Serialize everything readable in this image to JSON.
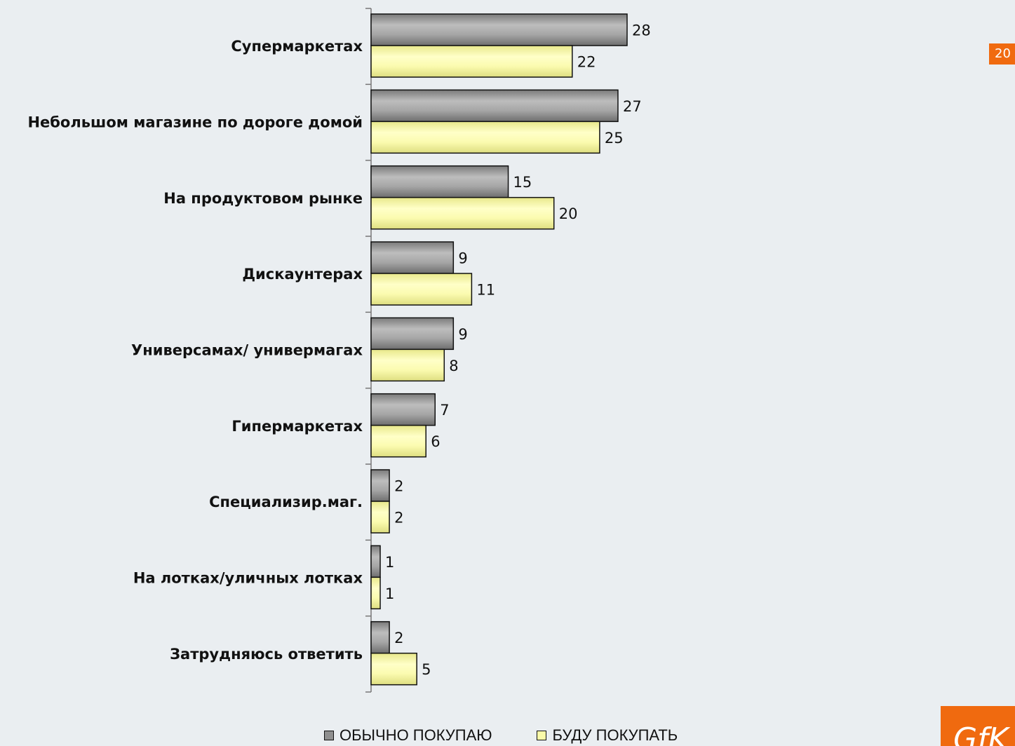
{
  "page_number": "20",
  "logo_text": "GfK",
  "colors": {
    "series_1": "#8f8f8f",
    "series_2": "#fafaa8",
    "background": "#eaeef1",
    "accent": "#f06a0f"
  },
  "chart_data": {
    "type": "bar",
    "orientation": "horizontal",
    "title": "",
    "xlabel": "",
    "ylabel": "",
    "xlim": [
      0,
      28
    ],
    "grid": false,
    "legend_placement": "bottom",
    "categories": [
      "Супермаркетах",
      "Небольшом магазине по дороге домой",
      "На продуктовом рынке",
      "Дискаунтерах",
      "Универсамах/ универмагах",
      "Гипермаркетах",
      "Специализир.маг.",
      "На лотках/уличных лотках",
      "Затрудняюсь ответить"
    ],
    "series": [
      {
        "name": "ОБЫЧНО ПОКУПАЮ",
        "values": [
          28,
          27,
          15,
          9,
          9,
          7,
          2,
          1,
          2
        ]
      },
      {
        "name": "БУДУ ПОКУПАТЬ",
        "values": [
          22,
          25,
          20,
          11,
          8,
          6,
          2,
          1,
          5
        ]
      }
    ]
  }
}
